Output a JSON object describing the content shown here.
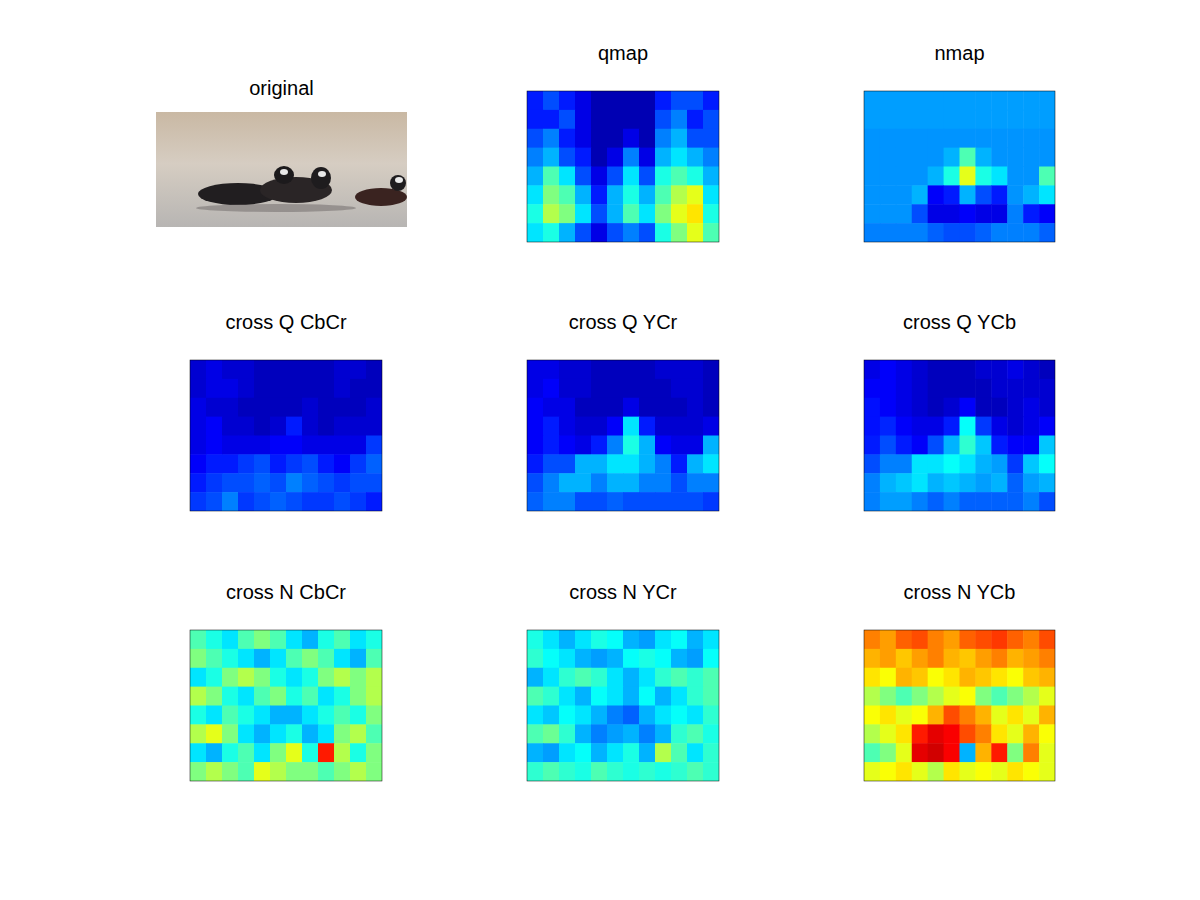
{
  "chart_data": [
    {
      "type": "image",
      "title": "original"
    },
    {
      "type": "heatmap",
      "title": "qmap",
      "tick_labels": false,
      "clim": [
        0,
        1
      ],
      "cells": [
        [
          0.15,
          0.2,
          0.15,
          0.1,
          0.05,
          0.05,
          0.05,
          0.05,
          0.15,
          0.2,
          0.2,
          0.15
        ],
        [
          0.15,
          0.15,
          0.2,
          0.1,
          0.05,
          0.05,
          0.05,
          0.05,
          0.2,
          0.25,
          0.15,
          0.2
        ],
        [
          0.2,
          0.25,
          0.15,
          0.1,
          0.05,
          0.05,
          0.1,
          0.05,
          0.25,
          0.3,
          0.2,
          0.2
        ],
        [
          0.25,
          0.3,
          0.2,
          0.15,
          0.05,
          0.1,
          0.25,
          0.1,
          0.3,
          0.35,
          0.3,
          0.25
        ],
        [
          0.3,
          0.45,
          0.35,
          0.2,
          0.1,
          0.2,
          0.35,
          0.2,
          0.4,
          0.45,
          0.4,
          0.3
        ],
        [
          0.35,
          0.5,
          0.45,
          0.3,
          0.15,
          0.3,
          0.4,
          0.3,
          0.45,
          0.55,
          0.6,
          0.35
        ],
        [
          0.4,
          0.55,
          0.5,
          0.35,
          0.2,
          0.3,
          0.45,
          0.35,
          0.5,
          0.6,
          0.65,
          0.4
        ],
        [
          0.35,
          0.4,
          0.3,
          0.2,
          0.1,
          0.2,
          0.25,
          0.2,
          0.4,
          0.5,
          0.6,
          0.45
        ]
      ]
    },
    {
      "type": "heatmap",
      "title": "nmap",
      "tick_labels": false,
      "clim": [
        0,
        1
      ],
      "cells": [
        [
          0.28,
          0.28,
          0.28,
          0.28,
          0.28,
          0.28,
          0.28,
          0.28,
          0.28,
          0.28,
          0.28,
          0.28
        ],
        [
          0.28,
          0.28,
          0.28,
          0.28,
          0.28,
          0.28,
          0.28,
          0.28,
          0.28,
          0.28,
          0.28,
          0.28
        ],
        [
          0.27,
          0.27,
          0.27,
          0.27,
          0.27,
          0.27,
          0.27,
          0.27,
          0.27,
          0.27,
          0.27,
          0.27
        ],
        [
          0.27,
          0.27,
          0.27,
          0.27,
          0.27,
          0.3,
          0.45,
          0.3,
          0.27,
          0.27,
          0.27,
          0.27
        ],
        [
          0.27,
          0.27,
          0.27,
          0.27,
          0.3,
          0.4,
          0.6,
          0.4,
          0.35,
          0.27,
          0.27,
          0.45
        ],
        [
          0.27,
          0.27,
          0.27,
          0.3,
          0.12,
          0.15,
          0.3,
          0.2,
          0.15,
          0.27,
          0.3,
          0.35
        ],
        [
          0.27,
          0.27,
          0.27,
          0.2,
          0.1,
          0.1,
          0.12,
          0.1,
          0.1,
          0.25,
          0.15,
          0.12
        ],
        [
          0.25,
          0.25,
          0.25,
          0.25,
          0.22,
          0.2,
          0.2,
          0.22,
          0.25,
          0.25,
          0.25,
          0.22
        ]
      ]
    },
    {
      "type": "heatmap",
      "title": "cross Q CbCr",
      "tick_labels": false,
      "clim": [
        0,
        1
      ],
      "cells": [
        [
          0.08,
          0.1,
          0.08,
          0.08,
          0.06,
          0.06,
          0.06,
          0.06,
          0.06,
          0.08,
          0.08,
          0.06
        ],
        [
          0.08,
          0.1,
          0.1,
          0.08,
          0.06,
          0.06,
          0.06,
          0.06,
          0.06,
          0.08,
          0.06,
          0.06
        ],
        [
          0.1,
          0.08,
          0.08,
          0.06,
          0.06,
          0.06,
          0.06,
          0.08,
          0.06,
          0.06,
          0.06,
          0.08
        ],
        [
          0.1,
          0.12,
          0.08,
          0.08,
          0.06,
          0.08,
          0.15,
          0.08,
          0.06,
          0.08,
          0.08,
          0.08
        ],
        [
          0.1,
          0.12,
          0.1,
          0.1,
          0.1,
          0.12,
          0.12,
          0.1,
          0.1,
          0.1,
          0.1,
          0.18
        ],
        [
          0.12,
          0.15,
          0.15,
          0.18,
          0.2,
          0.15,
          0.18,
          0.2,
          0.15,
          0.12,
          0.18,
          0.22
        ],
        [
          0.15,
          0.18,
          0.2,
          0.2,
          0.22,
          0.2,
          0.25,
          0.22,
          0.2,
          0.18,
          0.2,
          0.2
        ],
        [
          0.18,
          0.2,
          0.25,
          0.18,
          0.2,
          0.22,
          0.2,
          0.18,
          0.18,
          0.2,
          0.18,
          0.15
        ]
      ]
    },
    {
      "type": "heatmap",
      "title": "cross Q YCr",
      "tick_labels": false,
      "clim": [
        0,
        1
      ],
      "cells": [
        [
          0.1,
          0.1,
          0.08,
          0.08,
          0.06,
          0.06,
          0.06,
          0.06,
          0.08,
          0.08,
          0.08,
          0.06
        ],
        [
          0.1,
          0.12,
          0.08,
          0.08,
          0.06,
          0.06,
          0.06,
          0.06,
          0.06,
          0.08,
          0.08,
          0.06
        ],
        [
          0.12,
          0.1,
          0.1,
          0.06,
          0.06,
          0.06,
          0.1,
          0.06,
          0.06,
          0.06,
          0.08,
          0.06
        ],
        [
          0.12,
          0.15,
          0.1,
          0.08,
          0.08,
          0.12,
          0.35,
          0.15,
          0.08,
          0.08,
          0.08,
          0.1
        ],
        [
          0.12,
          0.15,
          0.12,
          0.1,
          0.15,
          0.25,
          0.4,
          0.3,
          0.12,
          0.1,
          0.1,
          0.3
        ],
        [
          0.15,
          0.2,
          0.2,
          0.3,
          0.3,
          0.35,
          0.35,
          0.3,
          0.25,
          0.15,
          0.3,
          0.35
        ],
        [
          0.2,
          0.25,
          0.3,
          0.3,
          0.25,
          0.3,
          0.3,
          0.25,
          0.25,
          0.2,
          0.25,
          0.25
        ],
        [
          0.22,
          0.25,
          0.25,
          0.2,
          0.2,
          0.22,
          0.2,
          0.2,
          0.2,
          0.2,
          0.2,
          0.18
        ]
      ]
    },
    {
      "type": "heatmap",
      "title": "cross Q YCb",
      "tick_labels": false,
      "clim": [
        0,
        1
      ],
      "cells": [
        [
          0.1,
          0.12,
          0.1,
          0.08,
          0.06,
          0.06,
          0.06,
          0.08,
          0.08,
          0.1,
          0.08,
          0.06
        ],
        [
          0.12,
          0.12,
          0.1,
          0.08,
          0.06,
          0.06,
          0.06,
          0.06,
          0.08,
          0.08,
          0.08,
          0.08
        ],
        [
          0.14,
          0.12,
          0.1,
          0.08,
          0.06,
          0.08,
          0.12,
          0.06,
          0.06,
          0.08,
          0.1,
          0.08
        ],
        [
          0.14,
          0.16,
          0.12,
          0.1,
          0.1,
          0.15,
          0.38,
          0.18,
          0.1,
          0.08,
          0.1,
          0.12
        ],
        [
          0.15,
          0.2,
          0.15,
          0.12,
          0.2,
          0.3,
          0.42,
          0.32,
          0.15,
          0.12,
          0.12,
          0.32
        ],
        [
          0.2,
          0.25,
          0.25,
          0.35,
          0.35,
          0.38,
          0.35,
          0.3,
          0.28,
          0.18,
          0.32,
          0.38
        ],
        [
          0.25,
          0.3,
          0.32,
          0.35,
          0.3,
          0.32,
          0.3,
          0.28,
          0.3,
          0.22,
          0.28,
          0.3
        ],
        [
          0.25,
          0.28,
          0.28,
          0.25,
          0.22,
          0.25,
          0.22,
          0.22,
          0.22,
          0.22,
          0.25,
          0.2
        ]
      ]
    },
    {
      "type": "heatmap",
      "title": "cross N CbCr",
      "tick_labels": false,
      "clim": [
        0,
        1
      ],
      "cells": [
        [
          0.45,
          0.4,
          0.35,
          0.45,
          0.5,
          0.45,
          0.35,
          0.3,
          0.4,
          0.45,
          0.35,
          0.4
        ],
        [
          0.5,
          0.45,
          0.4,
          0.35,
          0.3,
          0.35,
          0.45,
          0.5,
          0.45,
          0.35,
          0.3,
          0.45
        ],
        [
          0.35,
          0.4,
          0.5,
          0.55,
          0.5,
          0.4,
          0.35,
          0.4,
          0.5,
          0.55,
          0.5,
          0.55
        ],
        [
          0.55,
          0.5,
          0.4,
          0.35,
          0.45,
          0.5,
          0.4,
          0.45,
          0.35,
          0.4,
          0.5,
          0.55
        ],
        [
          0.4,
          0.35,
          0.45,
          0.4,
          0.35,
          0.3,
          0.3,
          0.35,
          0.4,
          0.45,
          0.4,
          0.5
        ],
        [
          0.55,
          0.6,
          0.5,
          0.35,
          0.3,
          0.35,
          0.4,
          0.3,
          0.35,
          0.5,
          0.55,
          0.45
        ],
        [
          0.35,
          0.3,
          0.4,
          0.45,
          0.35,
          0.5,
          0.6,
          0.4,
          0.85,
          0.55,
          0.4,
          0.5
        ],
        [
          0.5,
          0.55,
          0.5,
          0.45,
          0.6,
          0.55,
          0.5,
          0.5,
          0.45,
          0.5,
          0.55,
          0.5
        ]
      ]
    },
    {
      "type": "heatmap",
      "title": "cross N YCr",
      "tick_labels": false,
      "clim": [
        0,
        1
      ],
      "cells": [
        [
          0.4,
          0.35,
          0.3,
          0.35,
          0.4,
          0.38,
          0.3,
          0.28,
          0.35,
          0.38,
          0.3,
          0.35
        ],
        [
          0.42,
          0.38,
          0.35,
          0.3,
          0.28,
          0.3,
          0.38,
          0.4,
          0.38,
          0.3,
          0.28,
          0.38
        ],
        [
          0.3,
          0.35,
          0.42,
          0.45,
          0.42,
          0.35,
          0.3,
          0.35,
          0.42,
          0.45,
          0.42,
          0.45
        ],
        [
          0.45,
          0.42,
          0.35,
          0.3,
          0.38,
          0.35,
          0.3,
          0.38,
          0.3,
          0.35,
          0.42,
          0.45
        ],
        [
          0.35,
          0.32,
          0.38,
          0.35,
          0.3,
          0.25,
          0.22,
          0.3,
          0.35,
          0.38,
          0.35,
          0.42
        ],
        [
          0.45,
          0.48,
          0.42,
          0.3,
          0.25,
          0.28,
          0.3,
          0.25,
          0.3,
          0.42,
          0.45,
          0.4
        ],
        [
          0.3,
          0.28,
          0.35,
          0.38,
          0.3,
          0.35,
          0.4,
          0.3,
          0.55,
          0.45,
          0.35,
          0.42
        ],
        [
          0.42,
          0.45,
          0.42,
          0.4,
          0.45,
          0.42,
          0.4,
          0.42,
          0.4,
          0.42,
          0.45,
          0.42
        ]
      ]
    },
    {
      "type": "heatmap",
      "title": "cross N YCb",
      "tick_labels": false,
      "clim": [
        0,
        1
      ],
      "cells": [
        [
          0.75,
          0.72,
          0.78,
          0.8,
          0.75,
          0.72,
          0.78,
          0.8,
          0.82,
          0.78,
          0.75,
          0.8
        ],
        [
          0.7,
          0.72,
          0.68,
          0.72,
          0.75,
          0.7,
          0.68,
          0.72,
          0.75,
          0.7,
          0.72,
          0.75
        ],
        [
          0.65,
          0.62,
          0.7,
          0.68,
          0.62,
          0.65,
          0.7,
          0.68,
          0.65,
          0.62,
          0.68,
          0.7
        ],
        [
          0.55,
          0.5,
          0.45,
          0.5,
          0.55,
          0.6,
          0.62,
          0.5,
          0.45,
          0.5,
          0.55,
          0.6
        ],
        [
          0.62,
          0.65,
          0.6,
          0.62,
          0.7,
          0.8,
          0.75,
          0.7,
          0.6,
          0.65,
          0.6,
          0.7
        ],
        [
          0.55,
          0.6,
          0.65,
          0.85,
          0.9,
          0.88,
          0.8,
          0.75,
          0.65,
          0.6,
          0.7,
          0.62
        ],
        [
          0.45,
          0.5,
          0.6,
          0.9,
          0.92,
          0.88,
          0.3,
          0.7,
          0.85,
          0.5,
          0.75,
          0.6
        ],
        [
          0.6,
          0.62,
          0.65,
          0.6,
          0.55,
          0.65,
          0.6,
          0.62,
          0.6,
          0.65,
          0.62,
          0.6
        ]
      ]
    }
  ]
}
